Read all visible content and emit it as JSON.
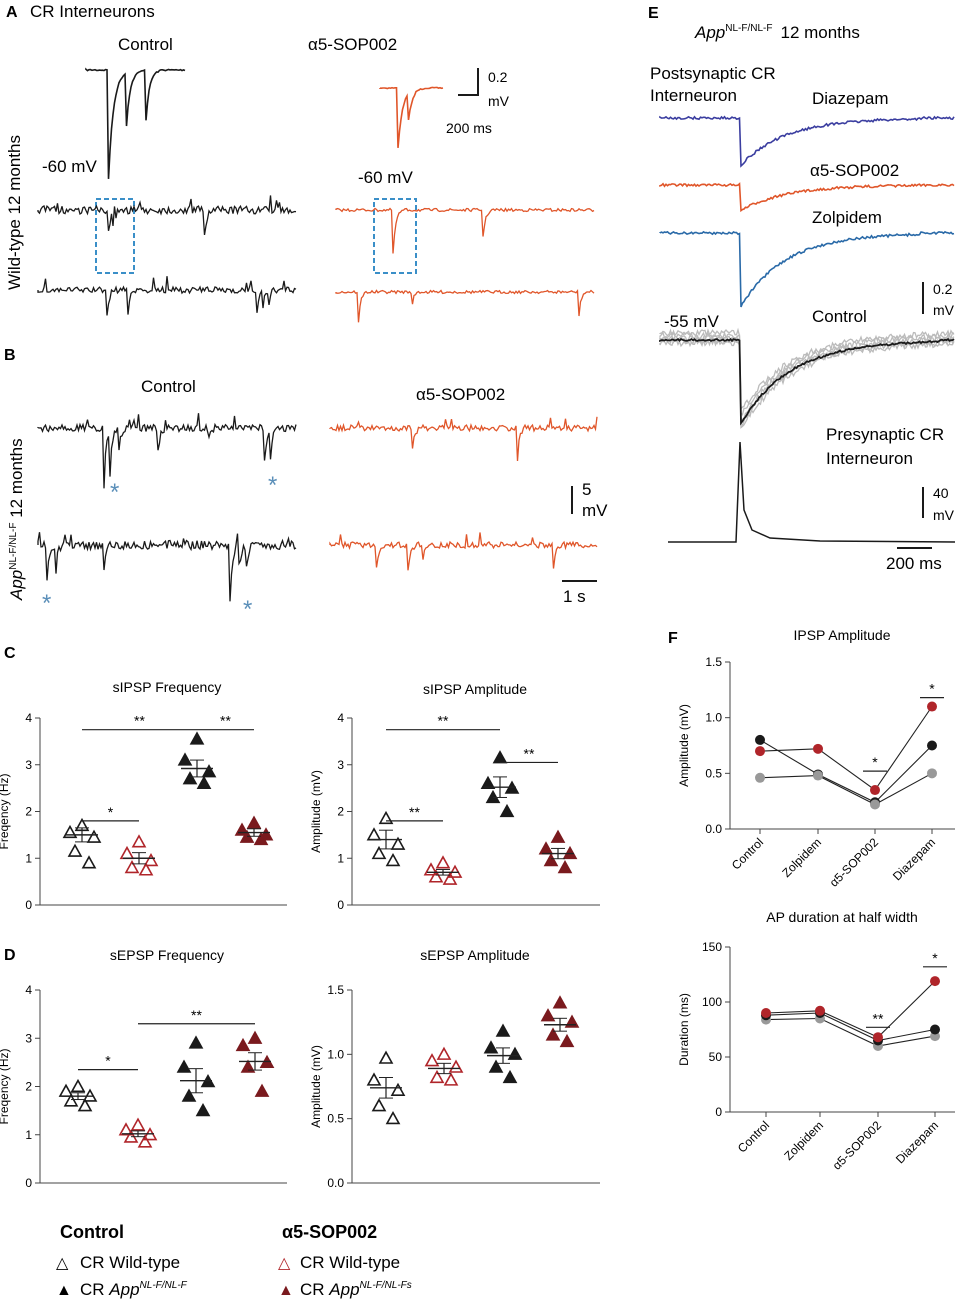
{
  "colors": {
    "control": "#1a1a1a",
    "sop": "#e0562a",
    "wt_open": "#1a1a1a",
    "red": "#b0252a",
    "darkred": "#7a1a1e",
    "gray": "#999999",
    "box": "#3a8fc8",
    "asterisk": "#5b8fb9",
    "diazepam": "#3b3ea0",
    "zolpidem": "#2a6aa8",
    "faint": "#bbbbbb"
  },
  "panelA": {
    "letter": "A",
    "title": "CR Interneurons",
    "row_label": "Wild-type 12 months",
    "control": "Control",
    "sop": "α5-SOP002",
    "mv1": "-60 mV",
    "mv2": "-60 mV",
    "scale_v": "0.2",
    "scale_v_unit": "mV",
    "scale_t": "200 ms"
  },
  "panelB": {
    "letter": "B",
    "row_label_main": "App",
    "row_label_sup": "NL-F/NL-F",
    "row_label_rest": " 12 months",
    "control": "Control",
    "sop": "α5-SOP002",
    "asterisk": "*",
    "scale_v": "5",
    "scale_v_unit": "mV",
    "scale_t": "1 s"
  },
  "panelC": {
    "letter": "C"
  },
  "panelD": {
    "letter": "D"
  },
  "panelE": {
    "letter": "E",
    "header_main": "App",
    "header_sup": "NL-F/NL-F",
    "header_rest": "12 months",
    "post_l1": "Postsynaptic CR",
    "post_l2": "Interneuron",
    "diazepam": "Diazepam",
    "sop": "α5-SOP002",
    "zolpidem": "Zolpidem",
    "control": "Control",
    "mv": "-55 mV",
    "scale_v1": "0.2",
    "scale_v1_unit": "mV",
    "pre_l1": "Presynaptic CR",
    "pre_l2": "Interneuron",
    "scale_v2": "40",
    "scale_v2_unit": "mV",
    "scale_t": "200 ms"
  },
  "panelF": {
    "letter": "F"
  },
  "legend": {
    "control_head": "Control",
    "sop_head": "α5-SOP002",
    "wt_label": "CR Wild-type",
    "app_prefix": "CR ",
    "app_main": "App",
    "app_sup": "NL-F/NL-F",
    "app_sup_s": "NL-F/NL-Fs",
    "open_tri": "△",
    "filled_tri": "▲"
  },
  "chart_data": [
    {
      "id": "sipsp_freq",
      "type": "scatter",
      "title": "sIPSP Frequency",
      "ylabel": "Freqency (Hz)",
      "ylim": [
        0,
        4
      ],
      "yticks": [
        0,
        1,
        2,
        3,
        4
      ],
      "groups": [
        {
          "name": "CR Wild-type Control",
          "values": [
            1.7,
            1.55,
            1.45,
            1.15,
            0.9
          ],
          "mean": 1.5,
          "sem": 0.15
        },
        {
          "name": "CR Wild-type α5-SOP002",
          "values": [
            1.35,
            1.1,
            0.95,
            0.8,
            0.75
          ],
          "mean": 1.0,
          "sem": 0.12
        },
        {
          "name": "CR App Control",
          "values": [
            3.55,
            3.1,
            2.85,
            2.7,
            2.6
          ],
          "mean": 2.92,
          "sem": 0.18
        },
        {
          "name": "CR App α5-SOP002",
          "values": [
            1.75,
            1.6,
            1.5,
            1.45,
            1.4
          ],
          "mean": 1.55,
          "sem": 0.08
        }
      ],
      "sig": [
        {
          "from": 0,
          "to": 2,
          "y": 3.75,
          "label": "**"
        },
        {
          "from": 2,
          "to": 3,
          "y": 3.75,
          "label": "**"
        },
        {
          "from": 0,
          "to": 1,
          "y": 1.8,
          "label": "*"
        }
      ]
    },
    {
      "id": "sipsp_amp",
      "type": "scatter",
      "title": "sIPSP Amplitude",
      "ylabel": "Amplitude (mV)",
      "ylim": [
        0,
        4
      ],
      "yticks": [
        0,
        1,
        2,
        3,
        4
      ],
      "groups": [
        {
          "name": "CR Wild-type Control",
          "values": [
            1.85,
            1.5,
            1.3,
            1.1,
            0.95
          ],
          "mean": 1.4,
          "sem": 0.2
        },
        {
          "name": "CR Wild-type α5-SOP002",
          "values": [
            0.9,
            0.75,
            0.7,
            0.6,
            0.55
          ],
          "mean": 0.7,
          "sem": 0.06
        },
        {
          "name": "CR App Control",
          "values": [
            3.15,
            2.6,
            2.5,
            2.3,
            2.0
          ],
          "mean": 2.52,
          "sem": 0.22
        },
        {
          "name": "CR App α5-SOP002",
          "values": [
            1.45,
            1.2,
            1.1,
            0.95,
            0.8
          ],
          "mean": 1.1,
          "sem": 0.11
        }
      ],
      "sig": [
        {
          "from": 0,
          "to": 2,
          "y": 3.75,
          "label": "**"
        },
        {
          "from": 2,
          "to": 3,
          "y": 3.05,
          "label": "**"
        },
        {
          "from": 0,
          "to": 1,
          "y": 1.8,
          "label": "**"
        }
      ]
    },
    {
      "id": "sepsp_freq",
      "type": "scatter",
      "title": "sEPSP Frequency",
      "ylabel": "Freqency (Hz)",
      "ylim": [
        0,
        4
      ],
      "yticks": [
        0,
        1,
        2,
        3,
        4
      ],
      "groups": [
        {
          "name": "CR Wild-type Control",
          "values": [
            2.0,
            1.9,
            1.8,
            1.7,
            1.6
          ],
          "mean": 1.8,
          "sem": 0.07
        },
        {
          "name": "CR Wild-type α5-SOP002",
          "values": [
            1.2,
            1.1,
            1.0,
            0.95,
            0.85
          ],
          "mean": 1.02,
          "sem": 0.06
        },
        {
          "name": "CR App Control",
          "values": [
            2.9,
            2.4,
            2.1,
            1.8,
            1.5
          ],
          "mean": 2.12,
          "sem": 0.25
        },
        {
          "name": "CR App α5-SOP002",
          "values": [
            3.0,
            2.85,
            2.5,
            2.4,
            1.9
          ],
          "mean": 2.52,
          "sem": 0.18
        }
      ],
      "sig": [
        {
          "from": 0,
          "to": 1,
          "y": 2.35,
          "label": "*"
        },
        {
          "from": 1,
          "to": 3,
          "y": 3.3,
          "label": "**"
        }
      ]
    },
    {
      "id": "sepsp_amp",
      "type": "scatter",
      "title": "sEPSP Amplitude",
      "ylabel": "Amplitude (mV)",
      "ylim": [
        0,
        1.5
      ],
      "yticks": [
        0.0,
        0.5,
        1.0,
        1.5
      ],
      "tick_decimals": 1,
      "groups": [
        {
          "name": "CR Wild-type Control",
          "values": [
            0.97,
            0.8,
            0.72,
            0.6,
            0.5
          ],
          "mean": 0.74,
          "sem": 0.08
        },
        {
          "name": "CR Wild-type α5-SOP002",
          "values": [
            1.0,
            0.95,
            0.9,
            0.82,
            0.8
          ],
          "mean": 0.89,
          "sem": 0.04
        },
        {
          "name": "CR App Control",
          "values": [
            1.18,
            1.05,
            1.0,
            0.9,
            0.82
          ],
          "mean": 0.99,
          "sem": 0.06
        },
        {
          "name": "CR App α5-SOP002",
          "values": [
            1.4,
            1.3,
            1.25,
            1.15,
            1.1
          ],
          "mean": 1.23,
          "sem": 0.05
        }
      ],
      "sig": []
    },
    {
      "id": "ipsp_amp_f",
      "type": "line",
      "title": "IPSP Amplitude",
      "ylabel": "Amplitude (mV)",
      "categories": [
        "Control",
        "Zolpidem",
        "α5-SOP002",
        "Diazepam"
      ],
      "ylim": [
        0,
        1.5
      ],
      "yticks": [
        0.0,
        0.5,
        1.0,
        1.5
      ],
      "tick_decimals": 1,
      "series": [
        {
          "name": "black",
          "color_key": "control",
          "values": [
            0.8,
            0.49,
            0.24,
            0.75
          ]
        },
        {
          "name": "red",
          "color_key": "red",
          "values": [
            0.7,
            0.72,
            0.35,
            1.1
          ]
        },
        {
          "name": "gray",
          "color_key": "gray",
          "values": [
            0.46,
            0.48,
            0.22,
            0.5
          ]
        }
      ],
      "sig": [
        {
          "from": 2,
          "to": 2,
          "y": 0.52,
          "label": "*"
        },
        {
          "from": 3,
          "to": 3,
          "y": 1.18,
          "label": "*"
        }
      ]
    },
    {
      "id": "ap_duration_f",
      "type": "line",
      "title": "AP duration at half width",
      "ylabel": "Duration (ms)",
      "categories": [
        "Control",
        "Zolpidem",
        "α5-SOP002",
        "Diazepam"
      ],
      "ylim": [
        0,
        150
      ],
      "yticks": [
        0,
        50,
        100,
        150
      ],
      "series": [
        {
          "name": "gray",
          "color_key": "gray",
          "values": [
            84,
            85,
            60,
            69
          ]
        },
        {
          "name": "black",
          "color_key": "control",
          "values": [
            88,
            90,
            65,
            75
          ]
        },
        {
          "name": "red",
          "color_key": "red",
          "values": [
            90,
            92,
            68,
            119
          ]
        }
      ],
      "sig": [
        {
          "from": 2,
          "to": 2,
          "y": 77,
          "label": "**"
        },
        {
          "from": 3,
          "to": 3,
          "y": 132,
          "label": "*"
        }
      ]
    }
  ]
}
